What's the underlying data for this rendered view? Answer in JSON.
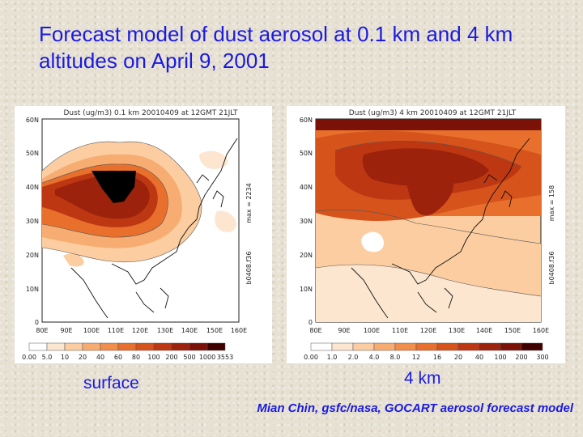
{
  "slide": {
    "title": "Forecast model of dust aerosol at 0.1 km and 4 km altitudes on April 9, 2001",
    "credit": "Mian Chin, gsfc/nasa, GOCART aerosol forecast model"
  },
  "colors": {
    "title_text": "#1a1adf",
    "background": "#e7e1d3"
  },
  "map_axes": {
    "lat_ticks": [
      "60N",
      "50N",
      "40N",
      "30N",
      "20N",
      "10N",
      "0"
    ],
    "lon_ticks": [
      "80E",
      "90E",
      "100E",
      "110E",
      "120E",
      "130E",
      "140E",
      "150E",
      "160E"
    ]
  },
  "panels": [
    {
      "caption": "surface",
      "plot_title": "Dust (ug/m3) 0.1 km 20010409 at 12GMT 21JLT",
      "max_label": "max = 2234",
      "run_label": "b0408.f36",
      "colorbar_labels": [
        "0.00",
        "5.0",
        "10",
        "20",
        "40",
        "60",
        "80",
        "100",
        "200",
        "500",
        "1000",
        "3553"
      ],
      "colorbar_colors": [
        "#ffffff",
        "#fde6cf",
        "#fbcda1",
        "#f7ad72",
        "#f28e49",
        "#e8702c",
        "#d6531b",
        "#bd3812",
        "#9c220c",
        "#7a1208",
        "#400000"
      ]
    },
    {
      "caption": "4 km",
      "plot_title": "Dust (ug/m3) 4 km 20010409 at 12GMT 21JLT",
      "max_label": "max = 158",
      "run_label": "b0408.f36",
      "colorbar_labels": [
        "0.00",
        "1.0",
        "2.0",
        "4.0",
        "8.0",
        "12",
        "16",
        "20",
        "40",
        "100",
        "200",
        "300"
      ],
      "colorbar_colors": [
        "#ffffff",
        "#fde6cf",
        "#fbcda1",
        "#f7ad72",
        "#f28e49",
        "#e8702c",
        "#d6531b",
        "#bd3812",
        "#9c220c",
        "#7a1208",
        "#400000"
      ]
    }
  ]
}
